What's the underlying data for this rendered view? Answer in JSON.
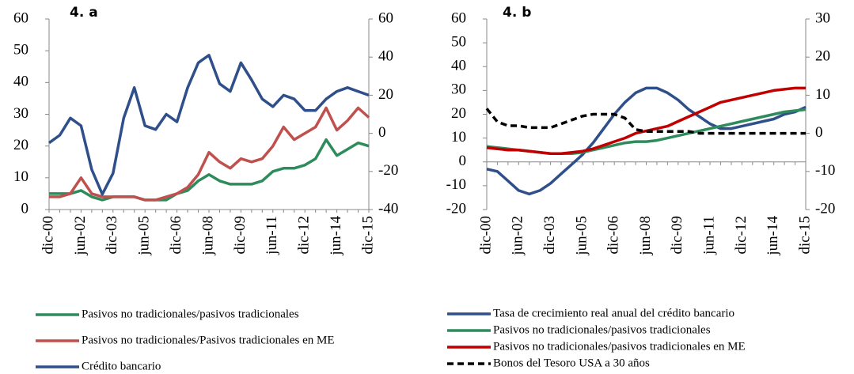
{
  "chart_data": [
    {
      "type": "line",
      "title": "4. a",
      "categories": [
        "dic-00",
        null,
        null,
        "jun-02",
        null,
        null,
        "dic-03",
        null,
        null,
        "jun-05",
        null,
        null,
        "dic-06",
        null,
        null,
        "jun-08",
        null,
        null,
        "dic-09",
        null,
        null,
        "jun-11",
        null,
        null,
        "dic-12",
        null,
        null,
        "jun-14",
        null,
        null,
        "dic-15"
      ],
      "ylim": [
        0,
        60
      ],
      "yticks": [
        0,
        10,
        20,
        30,
        40,
        50,
        60
      ],
      "y2lim": [
        -40,
        60
      ],
      "y2ticks": [
        -40,
        -20,
        0,
        20,
        40,
        60
      ],
      "legend": "bottom",
      "series": [
        {
          "name": "Pasivos no tradicionales/pasivos tradicionales",
          "color": "#2e8b5c",
          "style": "solid",
          "values": [
            5,
            5,
            5,
            6,
            4,
            3,
            4,
            4,
            4,
            3,
            3,
            3,
            5,
            6,
            9,
            11,
            9,
            8,
            8,
            8,
            9,
            12,
            13,
            13,
            14,
            16,
            22,
            17,
            19,
            21,
            20
          ]
        },
        {
          "name": "Pasivos no tradicionales/Pasivos tradicionales en ME",
          "color": "#c0504d",
          "style": "solid",
          "values": [
            4,
            4,
            5,
            10,
            5,
            4,
            4,
            4,
            4,
            3,
            3,
            4,
            5,
            7,
            11,
            18,
            15,
            13,
            16,
            15,
            16,
            20,
            26,
            22,
            24,
            26,
            32,
            25,
            28,
            32,
            29
          ]
        },
        {
          "name": "Crédito bancario",
          "color": "#2f4f8a",
          "style": "solid",
          "axis": "y2",
          "values": [
            -5,
            -1,
            8,
            4,
            -19,
            -32,
            -21,
            8,
            24,
            4,
            2,
            10,
            6,
            24,
            37,
            41,
            26,
            22,
            37,
            28,
            18,
            14,
            20,
            18,
            12,
            12,
            18,
            22,
            24,
            22,
            20
          ]
        }
      ]
    },
    {
      "type": "line",
      "title": "4. b",
      "categories": [
        "dic-00",
        null,
        null,
        "jun-02",
        null,
        null,
        "dic-03",
        null,
        null,
        "jun-05",
        null,
        null,
        "dic-06",
        null,
        null,
        "jun-08",
        null,
        null,
        "dic-09",
        null,
        null,
        "jun-11",
        null,
        null,
        "dic-12",
        null,
        null,
        "jun-14",
        null,
        null,
        "dic-15"
      ],
      "ylim": [
        -20,
        60
      ],
      "yticks": [
        -20,
        -10,
        0,
        10,
        20,
        30,
        40,
        50,
        60
      ],
      "y2lim": [
        -20,
        30
      ],
      "y2ticks": [
        -20,
        -10,
        0,
        10,
        20,
        30
      ],
      "legend": "bottom",
      "series": [
        {
          "name": "Tasa de crecimiento real anual del crédito bancario",
          "color": "#2f4f8a",
          "style": "solid",
          "values": [
            -3,
            -4,
            -8,
            -12,
            -13.5,
            -12,
            -9,
            -5,
            -1,
            3,
            8,
            14,
            20,
            25,
            29,
            31,
            31,
            29,
            26,
            22,
            19,
            16,
            14,
            14,
            15,
            16,
            17,
            18,
            20,
            21,
            23
          ]
        },
        {
          "name": "Pasivos no tradicionales/pasivos tradicionales",
          "color": "#2e8b5c",
          "style": "solid",
          "values": [
            6.5,
            6,
            5.5,
            5,
            4.5,
            4,
            3.5,
            3.5,
            3.5,
            4,
            5,
            6,
            7,
            8,
            8.5,
            8.5,
            9,
            10,
            11,
            12,
            13,
            14,
            15,
            16,
            17,
            18,
            19,
            20,
            21,
            21.5,
            22
          ]
        },
        {
          "name": "Pasivos no tradicionales/pasivos tradicionales en ME",
          "color": "#c00000",
          "style": "solid",
          "values": [
            6,
            5.5,
            5,
            5,
            4.5,
            4,
            3.5,
            3.5,
            4,
            4.5,
            5.5,
            7,
            8.5,
            10,
            12,
            13,
            14,
            15,
            17,
            19,
            21,
            23,
            25,
            26,
            27,
            28,
            29,
            30,
            30.5,
            31,
            31
          ]
        },
        {
          "name": "Bonos del Tesoro USA a 30 años",
          "color": "#000000",
          "style": "dashed",
          "axis": "y2",
          "values": [
            6.5,
            3,
            2,
            2,
            1.5,
            1.5,
            1.5,
            2.5,
            3.5,
            4.5,
            5,
            5,
            5,
            4,
            1,
            0.5,
            0.5,
            0.5,
            0.5,
            0.5,
            0,
            0,
            0,
            0,
            0,
            0,
            0,
            0,
            0,
            0,
            0
          ]
        }
      ]
    }
  ]
}
